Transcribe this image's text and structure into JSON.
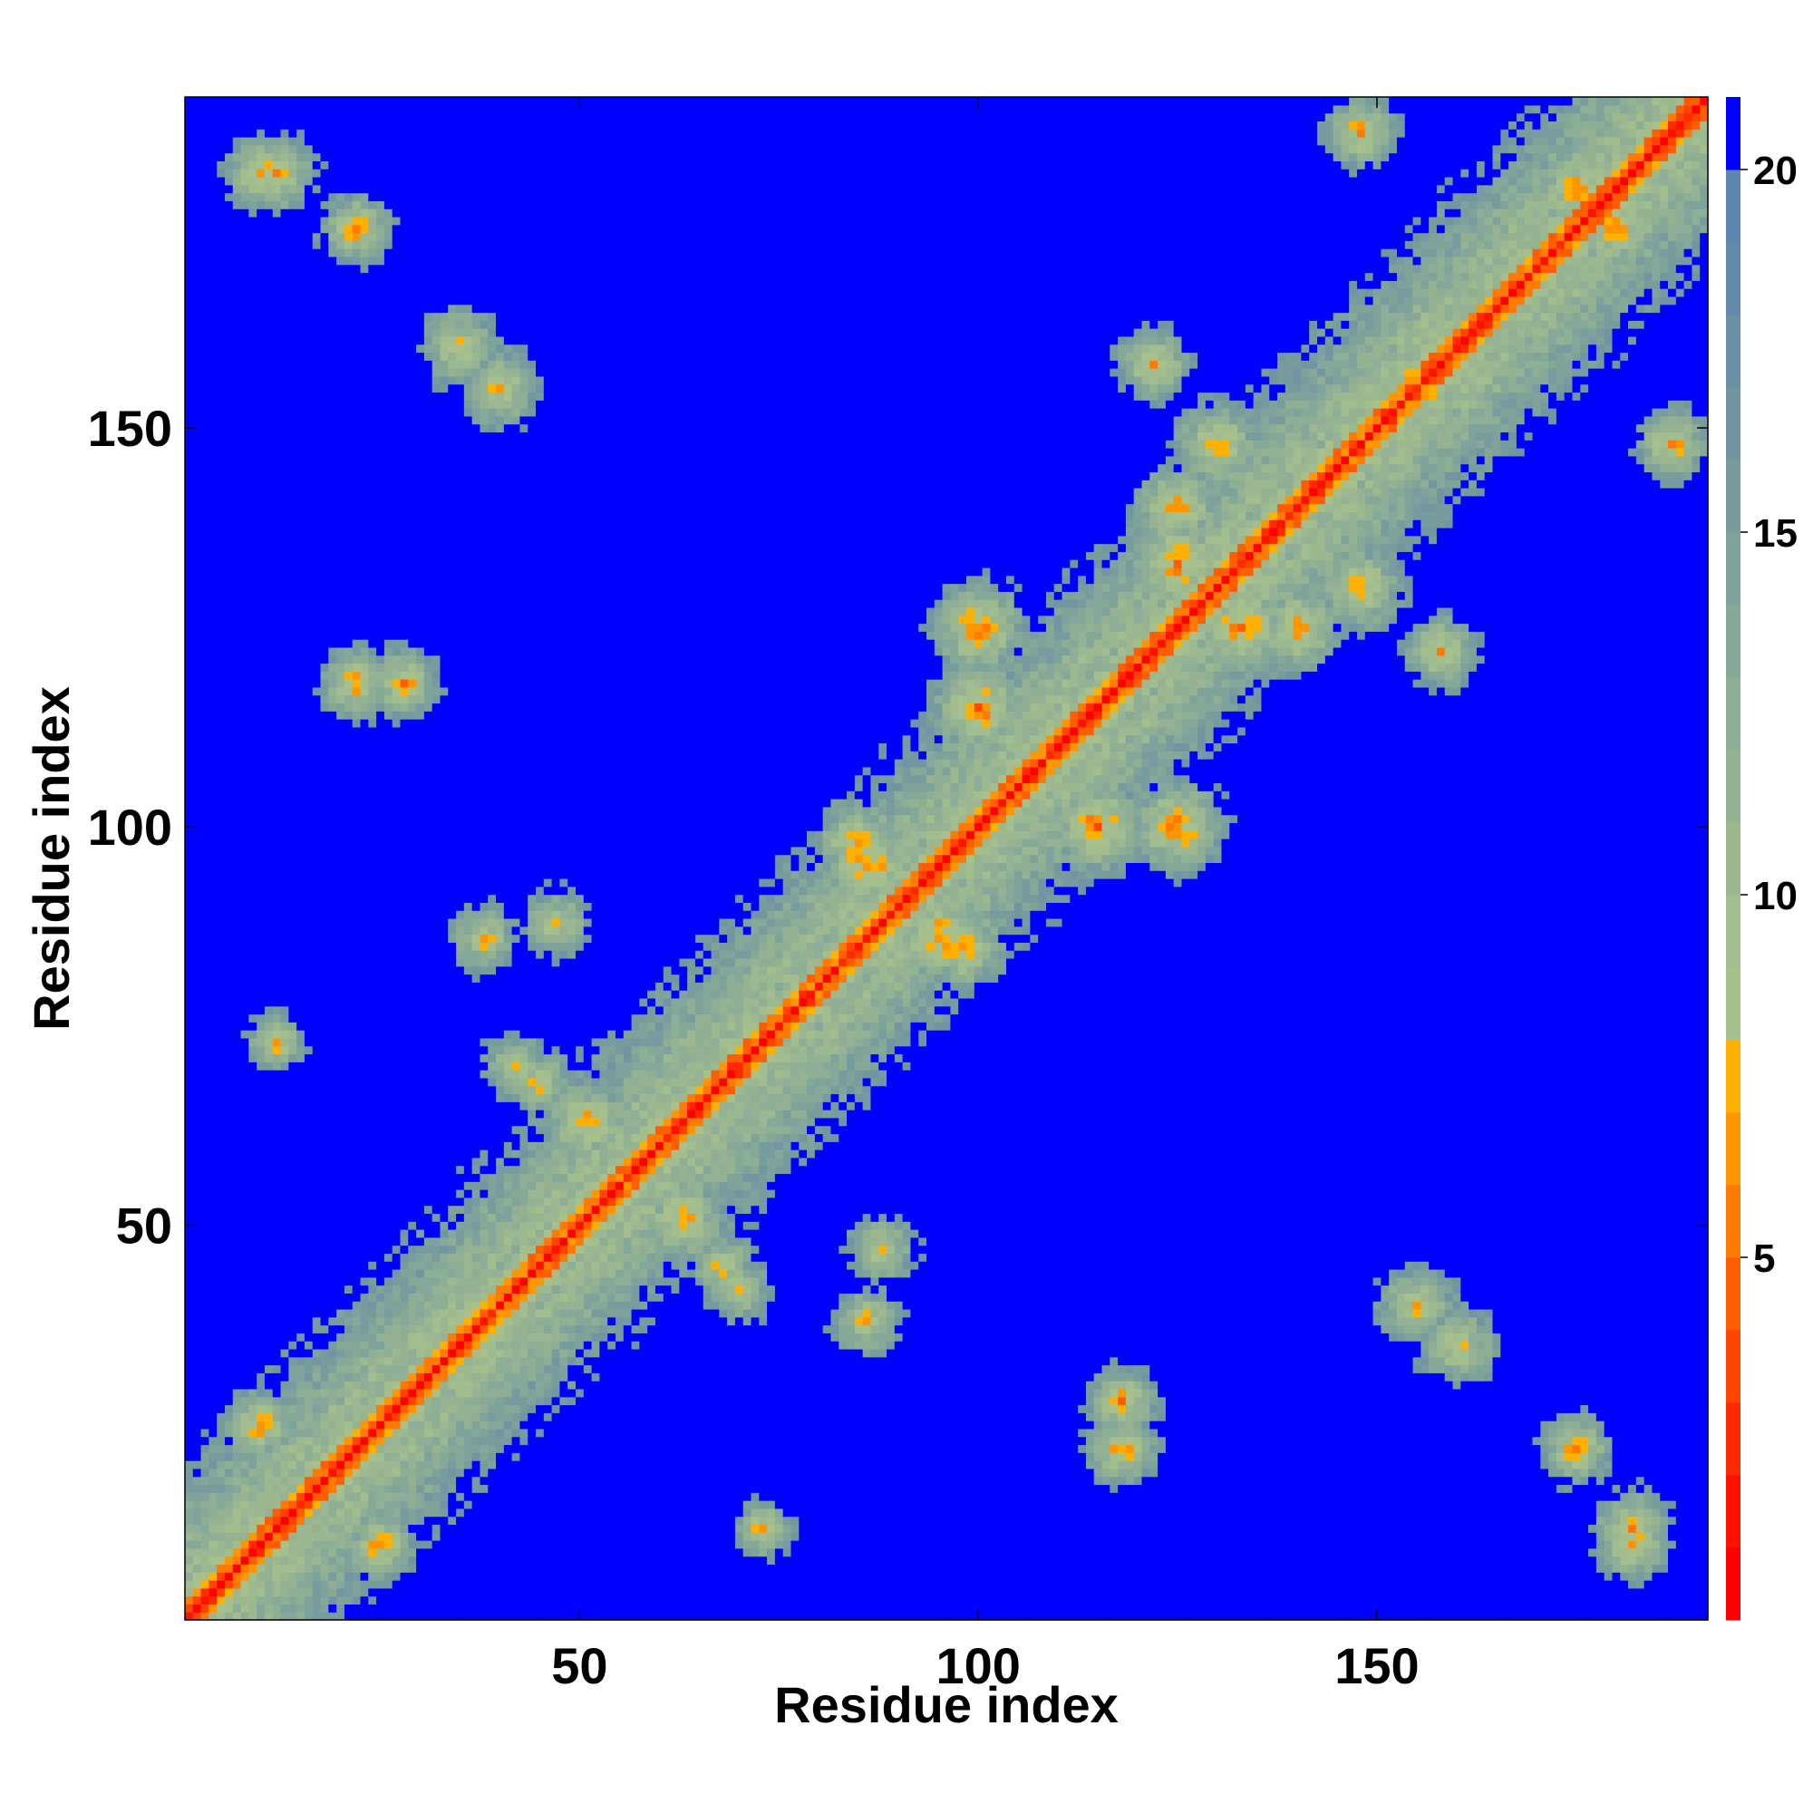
{
  "chart_data": {
    "type": "heatmap",
    "title": "",
    "xlabel": "Residue index",
    "ylabel": "Residue index",
    "n_residues": 191,
    "xlim": [
      1,
      191
    ],
    "ylim": [
      1,
      191
    ],
    "x_ticks": [
      50,
      100,
      150
    ],
    "y_ticks": [
      50,
      100,
      150
    ],
    "colorbar": {
      "range": [
        0,
        21
      ],
      "ticks": [
        5,
        10,
        15,
        20
      ],
      "bins": [
        {
          "upper": 1,
          "color": "#ff0000"
        },
        {
          "upper": 2,
          "color": "#ff1100"
        },
        {
          "upper": 3,
          "color": "#ff2a00"
        },
        {
          "upper": 4,
          "color": "#ff4400"
        },
        {
          "upper": 5,
          "color": "#ff5e00"
        },
        {
          "upper": 6,
          "color": "#ff7a00"
        },
        {
          "upper": 7,
          "color": "#ff9600"
        },
        {
          "upper": 8,
          "color": "#ffb000"
        },
        {
          "upper": 9,
          "color": "#a8c08c"
        },
        {
          "upper": 10,
          "color": "#a2bd8e"
        },
        {
          "upper": 11,
          "color": "#9cb890"
        },
        {
          "upper": 12,
          "color": "#95b392"
        },
        {
          "upper": 13,
          "color": "#8eae95"
        },
        {
          "upper": 14,
          "color": "#86a898"
        },
        {
          "upper": 15,
          "color": "#7fa29b"
        },
        {
          "upper": 16,
          "color": "#789c9e"
        },
        {
          "upper": 17,
          "color": "#7196a2"
        },
        {
          "upper": 18,
          "color": "#6a90a6"
        },
        {
          "upper": 19,
          "color": "#638aab"
        },
        {
          "upper": 20,
          "color": "#5c85b0"
        },
        {
          "upper": 21,
          "color": "#0000ff"
        }
      ]
    },
    "diagonal_distance": 0,
    "contact_features": [
      {
        "i": 10,
        "j": 25,
        "dist": 6,
        "spread": 5
      },
      {
        "i": 12,
        "j": 182,
        "dist": 7,
        "spread": 6
      },
      {
        "i": 35,
        "j": 160,
        "dist": 7,
        "spread": 6
      },
      {
        "i": 22,
        "j": 118,
        "dist": 6,
        "spread": 5
      },
      {
        "i": 38,
        "j": 86,
        "dist": 7,
        "spread": 5
      },
      {
        "i": 45,
        "j": 68,
        "dist": 7,
        "spread": 5
      },
      {
        "i": 63,
        "j": 51,
        "dist": 6,
        "spread": 6
      },
      {
        "i": 70,
        "j": 42,
        "dist": 7,
        "spread": 5
      },
      {
        "i": 73,
        "j": 12,
        "dist": 6,
        "spread": 4
      },
      {
        "i": 85,
        "j": 98,
        "dist": 6,
        "spread": 6
      },
      {
        "i": 88,
        "j": 47,
        "dist": 7,
        "spread": 5
      },
      {
        "i": 95,
        "j": 86,
        "dist": 5,
        "spread": 6
      },
      {
        "i": 100,
        "j": 125,
        "dist": 5,
        "spread": 6
      },
      {
        "i": 115,
        "j": 100,
        "dist": 5,
        "spread": 6
      },
      {
        "i": 118,
        "j": 28,
        "dist": 6,
        "spread": 5
      },
      {
        "i": 125,
        "j": 140,
        "dist": 6,
        "spread": 6
      },
      {
        "i": 133,
        "j": 125,
        "dist": 5,
        "spread": 6
      },
      {
        "i": 148,
        "j": 130,
        "dist": 6,
        "spread": 6
      },
      {
        "i": 155,
        "j": 40,
        "dist": 7,
        "spread": 6
      },
      {
        "i": 158,
        "j": 122,
        "dist": 6,
        "spread": 5
      },
      {
        "i": 175,
        "j": 22,
        "dist": 6,
        "spread": 5
      },
      {
        "i": 175,
        "j": 180,
        "dist": 6,
        "spread": 6
      },
      {
        "i": 182,
        "j": 10,
        "dist": 6,
        "spread": 5
      },
      {
        "i": 187,
        "j": 148,
        "dist": 6,
        "spread": 5
      }
    ]
  }
}
